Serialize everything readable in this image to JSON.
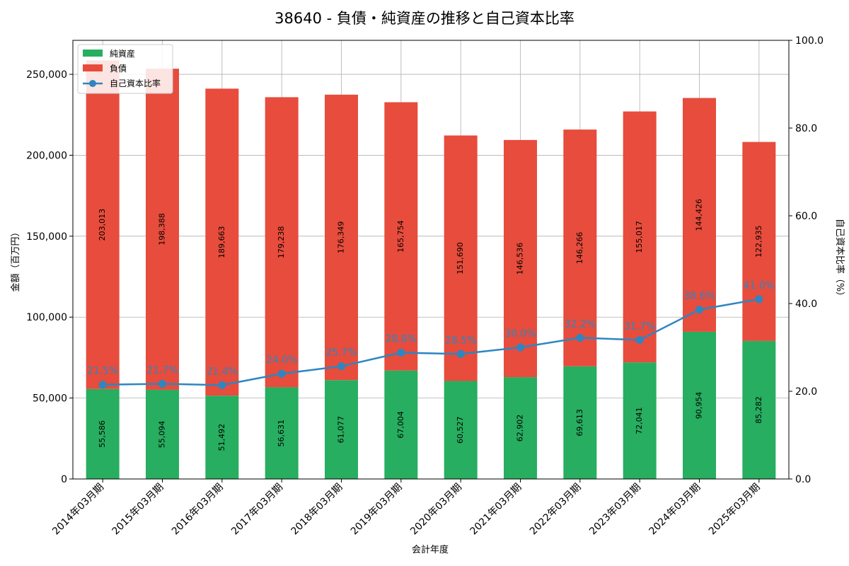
{
  "chart_data": {
    "type": "bar",
    "title": "38640 - 負債・純資産の推移と自己資本比率",
    "xlabel": "会計年度",
    "ylabel": "金額（百万円）",
    "y2label": "自己資本比率（%）",
    "ylim": [
      0,
      271000
    ],
    "y2lim": [
      0,
      100
    ],
    "yticks": [
      "0",
      "50,000",
      "100,000",
      "150,000",
      "200,000",
      "250,000"
    ],
    "y2ticks": [
      "0.0",
      "20.0",
      "40.0",
      "60.0",
      "80.0",
      "100.0"
    ],
    "grid": true,
    "legend_position": "top-left",
    "categories": [
      "2014年03月期",
      "2015年03月期",
      "2016年03月期",
      "2017年03月期",
      "2018年03月期",
      "2019年03月期",
      "2020年03月期",
      "2021年03月期",
      "2022年03月期",
      "2023年03月期",
      "2024年03月期",
      "2025年03月期"
    ],
    "series": [
      {
        "name": "純資産",
        "type": "bar",
        "color": "#27ae60",
        "values": [
          55586,
          55094,
          51492,
          56631,
          61077,
          67004,
          60527,
          62902,
          69613,
          72041,
          90954,
          85282
        ],
        "labels": [
          "55,586",
          "55,094",
          "51,492",
          "56,631",
          "61,077",
          "67,004",
          "60,527",
          "62,902",
          "69,613",
          "72,041",
          "90,954",
          "85,282"
        ]
      },
      {
        "name": "負債",
        "type": "bar",
        "color": "#e74c3c",
        "values": [
          203013,
          198388,
          189663,
          179238,
          176349,
          165754,
          151690,
          146536,
          146266,
          155017,
          144426,
          122935
        ],
        "labels": [
          "203,013",
          "198,388",
          "189,663",
          "179,238",
          "176,349",
          "165,754",
          "151,690",
          "146,536",
          "146,266",
          "155,017",
          "144,426",
          "122,935"
        ]
      },
      {
        "name": "自己資本比率",
        "type": "line",
        "axis": "right",
        "color": "#2e86c1",
        "values": [
          21.5,
          21.7,
          21.4,
          24.0,
          25.7,
          28.8,
          28.5,
          30.0,
          32.2,
          31.7,
          38.6,
          41.0
        ],
        "labels": [
          "21.5%",
          "21.7%",
          "21.4%",
          "24.0%",
          "25.7%",
          "28.8%",
          "28.5%",
          "30.0%",
          "32.2%",
          "31.7%",
          "38.6%",
          "41.0%"
        ]
      }
    ]
  }
}
